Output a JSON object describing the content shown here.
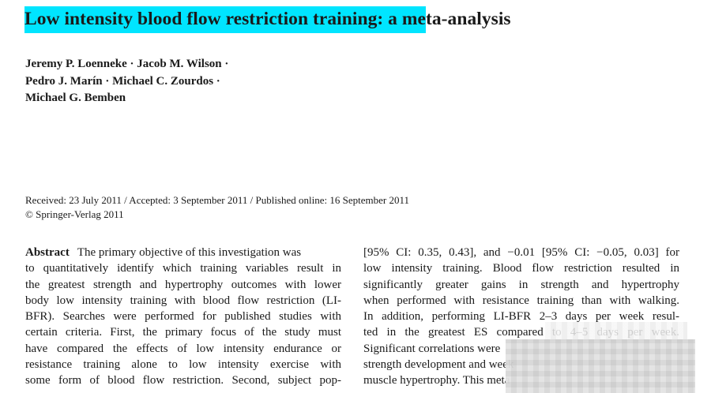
{
  "paper": {
    "title_highlighted": "Low intensity blood flow restriction training: a me",
    "title_rest": "ta-analysis",
    "authors": [
      "Jeremy P. Loenneke · Jacob M. Wilson ·",
      "Pedro J. Marín · Michael C. Zourdos ·",
      "Michael G. Bemben"
    ],
    "dates_line": "Received: 23 July 2011 / Accepted: 3 September 2011 / Published online: 16 September 2011",
    "copyright_line": "© Springer-Verlag 2011",
    "abstract_heading": "Abstract",
    "left_column": [
      "The primary objective of this investigation was",
      "to quantitatively identify which training variables result in",
      "the greatest strength and hypertrophy outcomes with lower",
      "body low intensity training with blood flow restriction (LI-",
      "BFR). Searches were performed for published studies with",
      "certain criteria. First, the primary focus of the study must",
      "have compared the effects of low intensity endurance or",
      "resistance training alone to low intensity exercise with",
      "some form of blood flow restriction. Second, subject pop-"
    ],
    "right_column": [
      "[95% CI: 0.35, 0.43], and −0.01 [95% CI: −0.05, 0.03] for",
      "low intensity training. Blood flow restriction resulted in",
      "significantly greater gains in strength and hypertrophy",
      "when performed with resistance training than with walking.",
      "In addition, performing LI-BFR 2–3 days per week resul-",
      "ted in the greatest ES compared to 4–5 days per week.",
      "Significant correlations were",
      "strength development and week",
      "muscle hypertrophy. This meta"
    ]
  }
}
